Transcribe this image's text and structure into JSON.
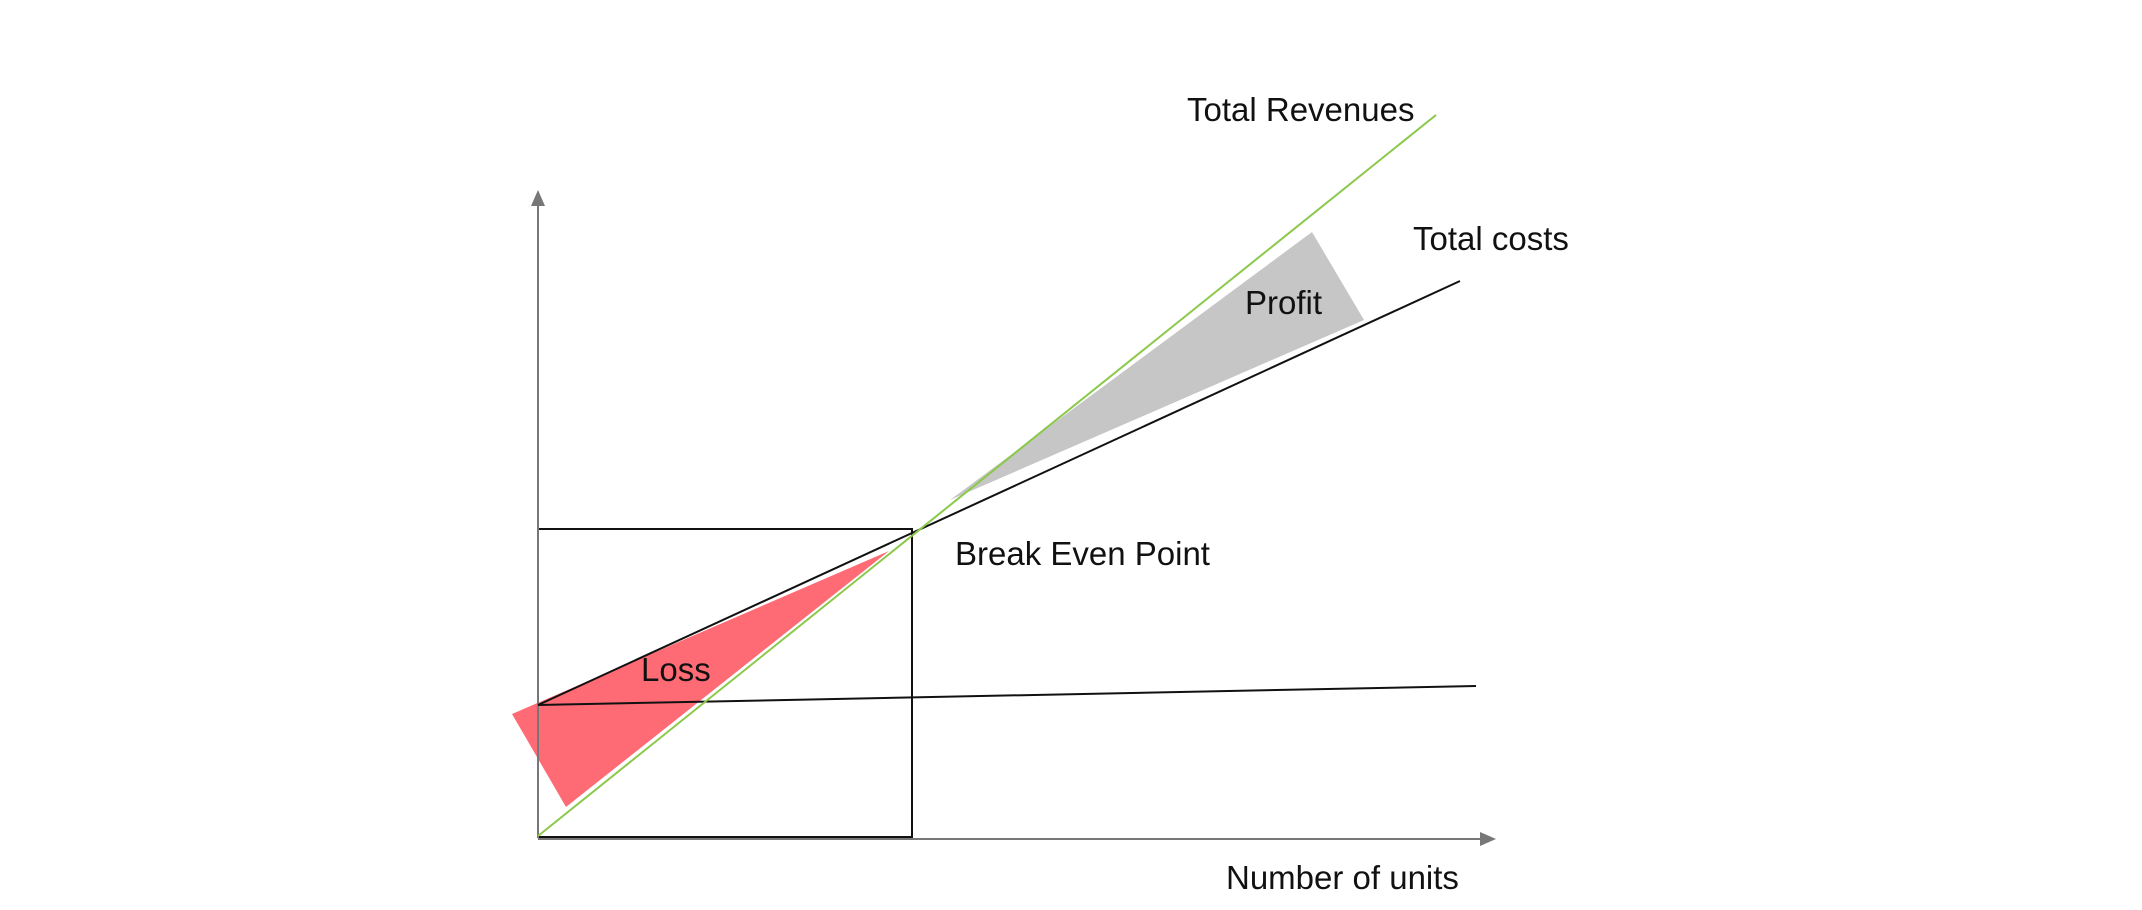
{
  "diagram": {
    "labels": {
      "total_revenues": "Total Revenues",
      "total_costs": "Total costs",
      "profit": "Profit",
      "break_even_point": "Break Even Point",
      "loss": "Loss",
      "x_axis": "Number of units"
    },
    "colors": {
      "revenue_line": "#8cc84b",
      "cost_line": "#111111",
      "loss_area": "#ff6b75",
      "profit_area": "#c6c6c6",
      "axis": "#777777",
      "box": "#111111",
      "text": "#111111"
    }
  }
}
